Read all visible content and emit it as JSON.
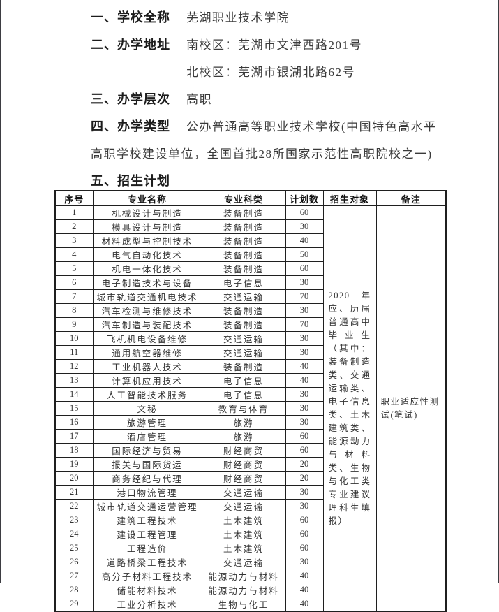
{
  "colors": {
    "background": "#ffffff",
    "text": "#2e2e2e",
    "table_border": "#1f1f1f",
    "page_edge": "#3d3d42"
  },
  "sections": {
    "s1": {
      "label": "一、学校全称",
      "value": "芜湖职业技术学院"
    },
    "s2": {
      "label": "二、办学地址",
      "value": "南校区：芜湖市文津西路201号",
      "value2": "北校区：芜湖市银湖北路62号"
    },
    "s3": {
      "label": "三、办学层次",
      "value": "高职"
    },
    "s4": {
      "label": "四、办学类型",
      "value": "公办普通高等职业技术学校(中国特色高水平",
      "value2": "高职学校建设单位，全国首批28所国家示范性高职院校之一)"
    },
    "s5": {
      "label": "五、招生计划"
    }
  },
  "table": {
    "columns": [
      "序号",
      "专业名称",
      "专业科类",
      "计划数",
      "招生对象",
      "备注"
    ],
    "rows": [
      [
        "1",
        "机械设计与制造",
        "装备制造",
        "60"
      ],
      [
        "2",
        "模具设计与制造",
        "装备制造",
        "30"
      ],
      [
        "3",
        "材料成型与控制技术",
        "装备制造",
        "40"
      ],
      [
        "4",
        "电气自动化技术",
        "装备制造",
        "50"
      ],
      [
        "5",
        "机电一体化技术",
        "装备制造",
        "60"
      ],
      [
        "6",
        "电子制造技术与设备",
        "电子信息",
        "30"
      ],
      [
        "7",
        "城市轨道交通机电技术",
        "交通运输",
        "70"
      ],
      [
        "8",
        "汽车检测与维修技术",
        "装备制造",
        "30"
      ],
      [
        "9",
        "汽车制造与装配技术",
        "装备制造",
        "70"
      ],
      [
        "10",
        "飞机机电设备维修",
        "交通运输",
        "30"
      ],
      [
        "11",
        "通用航空器维修",
        "交通运输",
        "30"
      ],
      [
        "12",
        "工业机器人技术",
        "装备制造",
        "40"
      ],
      [
        "13",
        "计算机应用技术",
        "电子信息",
        "40"
      ],
      [
        "14",
        "人工智能技术服务",
        "电子信息",
        "30"
      ],
      [
        "15",
        "文秘",
        "教育与体育",
        "30"
      ],
      [
        "16",
        "旅游管理",
        "旅游",
        "30"
      ],
      [
        "17",
        "酒店管理",
        "旅游",
        "60"
      ],
      [
        "18",
        "国际经济与贸易",
        "财经商贸",
        "60"
      ],
      [
        "19",
        "报关与国际货运",
        "财经商贸",
        "20"
      ],
      [
        "20",
        "商务经纪与代理",
        "财经商贸",
        "20"
      ],
      [
        "21",
        "港口物流管理",
        "交通运输",
        "30"
      ],
      [
        "22",
        "城市轨道交通运营管理",
        "交通运输",
        "30"
      ],
      [
        "23",
        "建筑工程技术",
        "土木建筑",
        "60"
      ],
      [
        "24",
        "建设工程管理",
        "土木建筑",
        "60"
      ],
      [
        "25",
        "工程造价",
        "土木建筑",
        "60"
      ],
      [
        "26",
        "道路桥梁工程技术",
        "交通运输",
        "30"
      ],
      [
        "27",
        "高分子材料工程技术",
        "能源动力与材料",
        "40"
      ],
      [
        "28",
        "储能材料技术",
        "能源动力与材料",
        "40"
      ],
      [
        "29",
        "工业分析技术",
        "生物与化工",
        "40"
      ]
    ],
    "target": "2020 年应、历届普通高中毕业生（其中：装备制造类、交通运输类、电子信息类、土木建筑类、能源动力与材料类、生物与化工类专业建议理科生填报）",
    "remark": "职业适应性测试(笔试)"
  }
}
